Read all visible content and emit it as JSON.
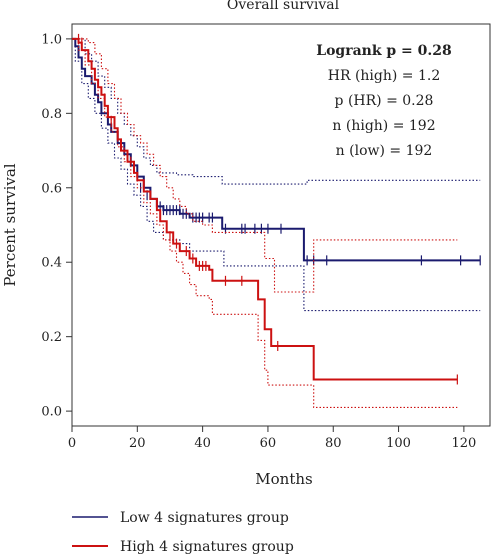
{
  "chart_data": {
    "type": "line",
    "title": "Overall survival",
    "xlabel": "Months",
    "ylabel": "Percent survival",
    "xlim": [
      0,
      128
    ],
    "ylim": [
      -0.04,
      1.04
    ],
    "xticks": [
      0,
      20,
      40,
      60,
      80,
      100,
      120
    ],
    "yticks": [
      0.0,
      0.2,
      0.4,
      0.6,
      0.8,
      1.0
    ],
    "xtick_labels": [
      "0",
      "20",
      "40",
      "60",
      "80",
      "100",
      "120"
    ],
    "ytick_labels": [
      "0.0",
      "0.2",
      "0.4",
      "0.6",
      "0.8",
      "1.0"
    ],
    "stats": [
      "Logrank p = 0.28",
      "HR (high) = 1.2",
      "p (HR) = 0.28",
      "n (high) = 192",
      "n (low) = 192"
    ],
    "legend_position": "bottom",
    "series": [
      {
        "name": "Low 4 signatures group",
        "color": "#1a1a6e",
        "steps": [
          [
            0,
            1.0
          ],
          [
            1,
            0.98
          ],
          [
            2,
            0.95
          ],
          [
            3,
            0.92
          ],
          [
            4,
            0.9
          ],
          [
            6,
            0.88
          ],
          [
            7,
            0.85
          ],
          [
            8,
            0.83
          ],
          [
            9,
            0.8
          ],
          [
            11,
            0.77
          ],
          [
            12,
            0.75
          ],
          [
            14,
            0.72
          ],
          [
            16,
            0.69
          ],
          [
            18,
            0.66
          ],
          [
            20,
            0.63
          ],
          [
            22,
            0.6
          ],
          [
            24,
            0.57
          ],
          [
            26,
            0.55
          ],
          [
            28,
            0.54
          ],
          [
            33,
            0.53
          ],
          [
            36,
            0.52
          ],
          [
            41,
            0.52
          ],
          [
            46,
            0.49
          ],
          [
            70,
            0.49
          ],
          [
            71,
            0.405
          ],
          [
            125,
            0.405
          ]
        ],
        "upper": [
          [
            0,
            1.0
          ],
          [
            2,
            1.0
          ],
          [
            4,
            0.96
          ],
          [
            6,
            0.94
          ],
          [
            8,
            0.9
          ],
          [
            10,
            0.87
          ],
          [
            12,
            0.84
          ],
          [
            14,
            0.8
          ],
          [
            16,
            0.77
          ],
          [
            18,
            0.74
          ],
          [
            20,
            0.71
          ],
          [
            22,
            0.68
          ],
          [
            24,
            0.66
          ],
          [
            26,
            0.64
          ],
          [
            32,
            0.635
          ],
          [
            37,
            0.63
          ],
          [
            46,
            0.61
          ],
          [
            71,
            0.61
          ],
          [
            72,
            0.62
          ],
          [
            125,
            0.62
          ]
        ],
        "lower": [
          [
            0,
            1.0
          ],
          [
            1,
            0.94
          ],
          [
            3,
            0.88
          ],
          [
            5,
            0.84
          ],
          [
            7,
            0.8
          ],
          [
            9,
            0.76
          ],
          [
            11,
            0.72
          ],
          [
            13,
            0.68
          ],
          [
            15,
            0.65
          ],
          [
            17,
            0.61
          ],
          [
            19,
            0.58
          ],
          [
            21,
            0.55
          ],
          [
            23,
            0.51
          ],
          [
            25,
            0.48
          ],
          [
            28,
            0.46
          ],
          [
            33,
            0.45
          ],
          [
            36,
            0.43
          ],
          [
            46,
            0.43
          ],
          [
            46.5,
            0.39
          ],
          [
            70,
            0.39
          ],
          [
            71,
            0.27
          ],
          [
            125,
            0.27
          ]
        ],
        "censors": [
          [
            21,
            0.6
          ],
          [
            23,
            0.58
          ],
          [
            27,
            0.55
          ],
          [
            28,
            0.54
          ],
          [
            29,
            0.54
          ],
          [
            30,
            0.54
          ],
          [
            31,
            0.54
          ],
          [
            32,
            0.54
          ],
          [
            33,
            0.54
          ],
          [
            34,
            0.53
          ],
          [
            35,
            0.53
          ],
          [
            37,
            0.52
          ],
          [
            38,
            0.52
          ],
          [
            39,
            0.52
          ],
          [
            40,
            0.52
          ],
          [
            42,
            0.52
          ],
          [
            43,
            0.52
          ],
          [
            47,
            0.49
          ],
          [
            52,
            0.49
          ],
          [
            53,
            0.49
          ],
          [
            56,
            0.49
          ],
          [
            58,
            0.49
          ],
          [
            60,
            0.49
          ],
          [
            64,
            0.49
          ],
          [
            72,
            0.405
          ],
          [
            74,
            0.405
          ],
          [
            78,
            0.405
          ],
          [
            107,
            0.405
          ],
          [
            119,
            0.405
          ],
          [
            125,
            0.405
          ]
        ]
      },
      {
        "name": "High 4 signatures group",
        "color": "#cc1111",
        "steps": [
          [
            0,
            1.0
          ],
          [
            2,
            0.99
          ],
          [
            3,
            0.97
          ],
          [
            5,
            0.94
          ],
          [
            6,
            0.92
          ],
          [
            7,
            0.89
          ],
          [
            8,
            0.87
          ],
          [
            9,
            0.85
          ],
          [
            10,
            0.82
          ],
          [
            11,
            0.79
          ],
          [
            13,
            0.76
          ],
          [
            14,
            0.73
          ],
          [
            15,
            0.7
          ],
          [
            17,
            0.67
          ],
          [
            19,
            0.64
          ],
          [
            20,
            0.62
          ],
          [
            22,
            0.59
          ],
          [
            24,
            0.57
          ],
          [
            26,
            0.54
          ],
          [
            27,
            0.51
          ],
          [
            29,
            0.48
          ],
          [
            31,
            0.45
          ],
          [
            33,
            0.43
          ],
          [
            36,
            0.41
          ],
          [
            38,
            0.39
          ],
          [
            42,
            0.38
          ],
          [
            43,
            0.35
          ],
          [
            56,
            0.35
          ],
          [
            57,
            0.3
          ],
          [
            58,
            0.3
          ],
          [
            59,
            0.22
          ],
          [
            60,
            0.22
          ],
          [
            61,
            0.175
          ],
          [
            73,
            0.175
          ],
          [
            74,
            0.085
          ],
          [
            118,
            0.085
          ]
        ],
        "upper": [
          [
            0,
            1.0
          ],
          [
            3,
            1.0
          ],
          [
            5,
            0.99
          ],
          [
            7,
            0.96
          ],
          [
            9,
            0.92
          ],
          [
            11,
            0.88
          ],
          [
            13,
            0.84
          ],
          [
            15,
            0.8
          ],
          [
            17,
            0.77
          ],
          [
            19,
            0.74
          ],
          [
            21,
            0.72
          ],
          [
            23,
            0.69
          ],
          [
            25,
            0.66
          ],
          [
            27,
            0.63
          ],
          [
            29,
            0.6
          ],
          [
            31,
            0.57
          ],
          [
            33,
            0.55
          ],
          [
            35,
            0.53
          ],
          [
            37,
            0.51
          ],
          [
            40,
            0.5
          ],
          [
            43,
            0.48
          ],
          [
            57,
            0.48
          ],
          [
            59,
            0.41
          ],
          [
            61,
            0.41
          ],
          [
            62,
            0.32
          ],
          [
            73,
            0.32
          ],
          [
            74,
            0.46
          ],
          [
            118,
            0.46
          ]
        ],
        "lower": [
          [
            0,
            1.0
          ],
          [
            2,
            0.97
          ],
          [
            4,
            0.93
          ],
          [
            6,
            0.88
          ],
          [
            8,
            0.84
          ],
          [
            10,
            0.79
          ],
          [
            12,
            0.75
          ],
          [
            14,
            0.71
          ],
          [
            16,
            0.67
          ],
          [
            18,
            0.63
          ],
          [
            20,
            0.6
          ],
          [
            22,
            0.56
          ],
          [
            24,
            0.53
          ],
          [
            26,
            0.5
          ],
          [
            28,
            0.46
          ],
          [
            30,
            0.43
          ],
          [
            32,
            0.4
          ],
          [
            34,
            0.37
          ],
          [
            36,
            0.34
          ],
          [
            38,
            0.31
          ],
          [
            42,
            0.3
          ],
          [
            43,
            0.26
          ],
          [
            56,
            0.26
          ],
          [
            57,
            0.19
          ],
          [
            59,
            0.11
          ],
          [
            60,
            0.07
          ],
          [
            61,
            0.07
          ],
          [
            73,
            0.07
          ],
          [
            74,
            0.01
          ],
          [
            118,
            0.01
          ]
        ],
        "censors": [
          [
            2,
            1.0
          ],
          [
            3,
            0.99
          ],
          [
            10,
            0.84
          ],
          [
            12,
            0.78
          ],
          [
            18,
            0.67
          ],
          [
            30,
            0.47
          ],
          [
            32,
            0.45
          ],
          [
            35,
            0.43
          ],
          [
            37,
            0.41
          ],
          [
            39,
            0.39
          ],
          [
            40,
            0.39
          ],
          [
            41,
            0.39
          ],
          [
            47,
            0.35
          ],
          [
            52,
            0.35
          ],
          [
            63,
            0.175
          ],
          [
            118,
            0.085
          ]
        ]
      }
    ]
  }
}
